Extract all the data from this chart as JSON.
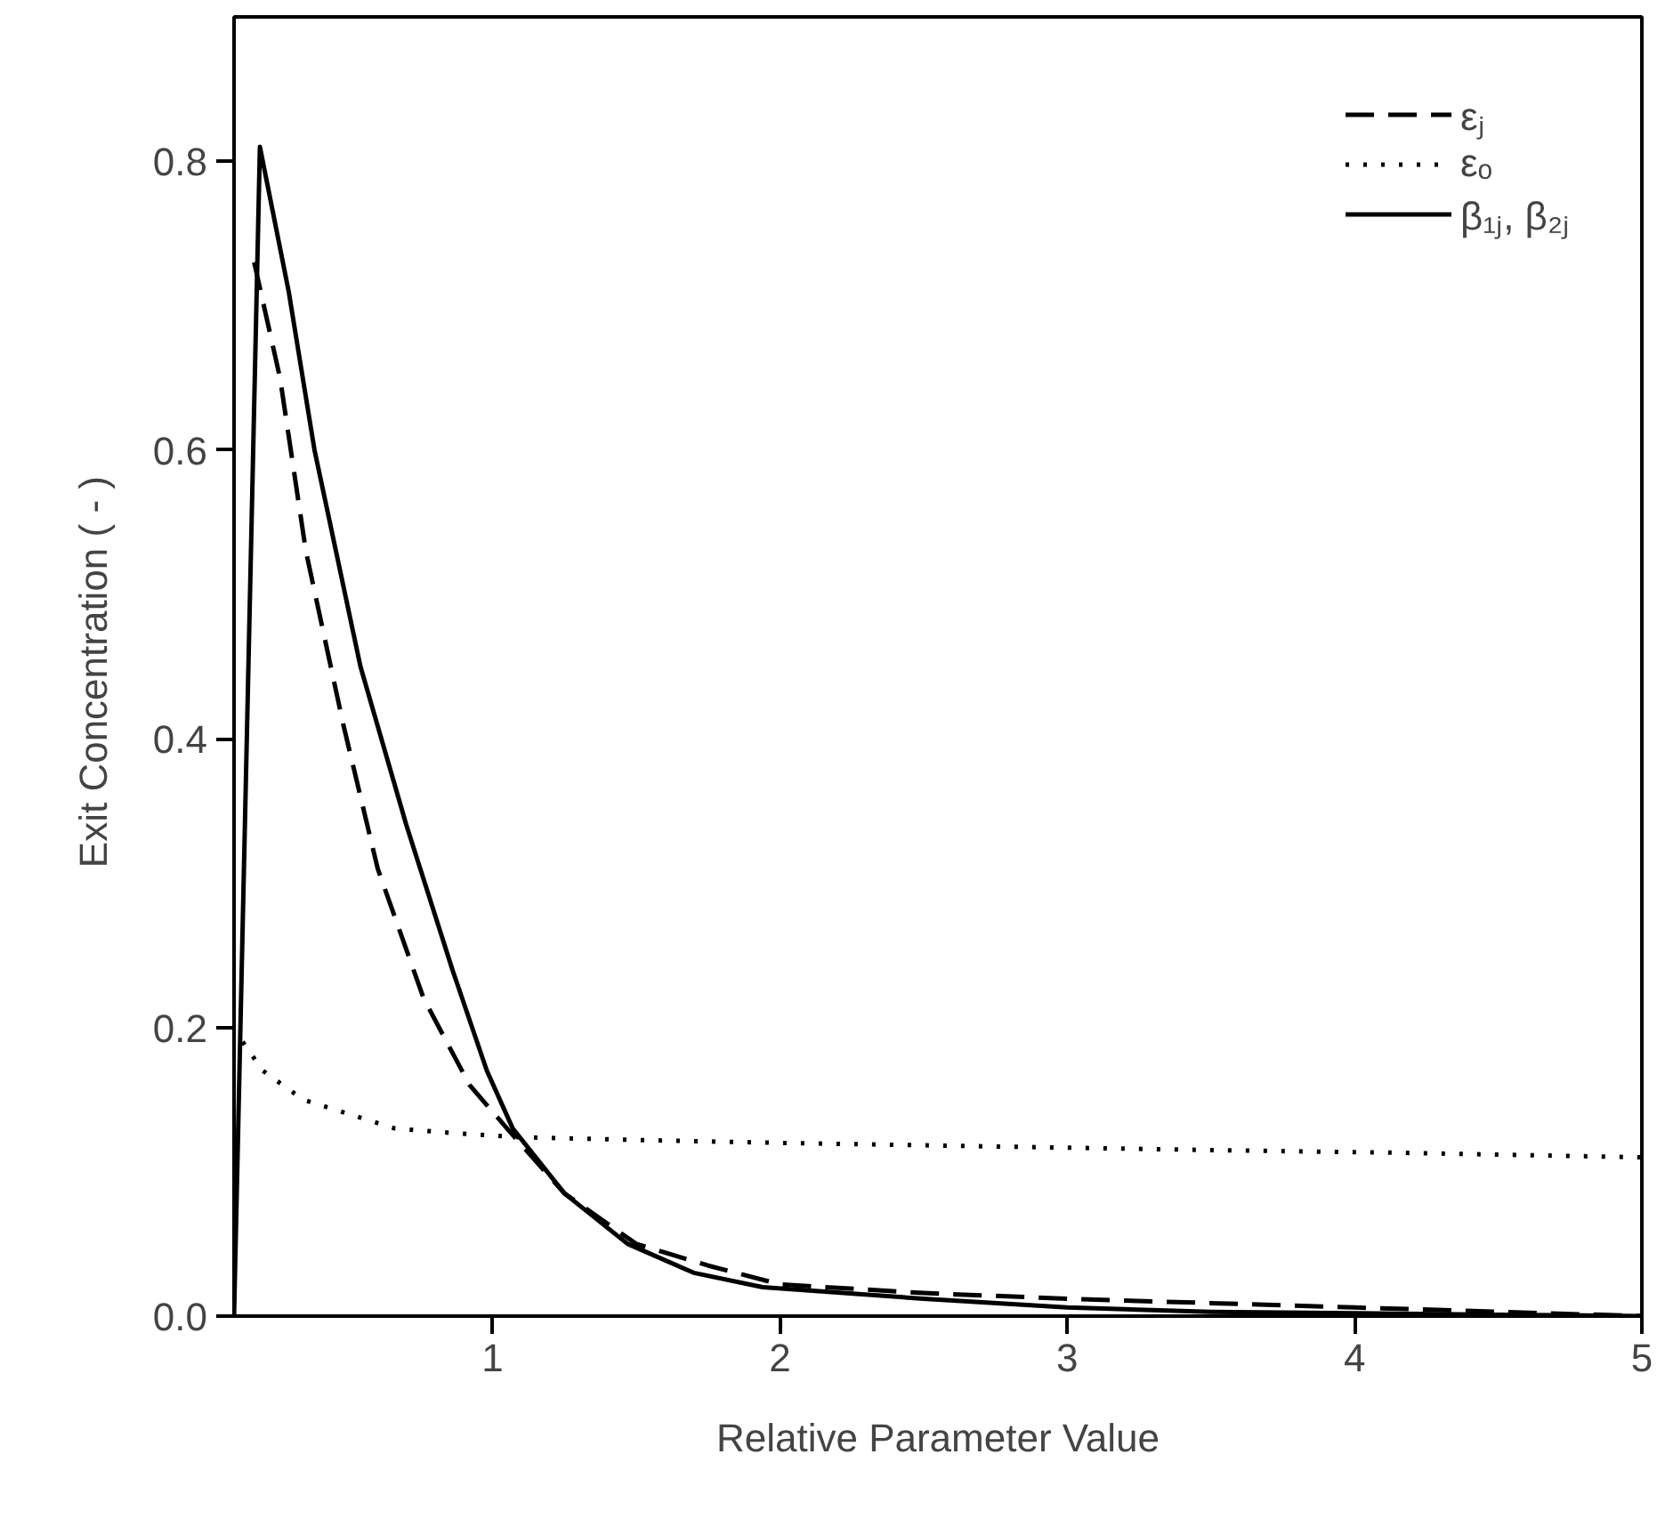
{
  "chart_data": {
    "type": "line",
    "xlabel": "Relative Parameter Value",
    "ylabel": "Exit  Concentration ( - )",
    "xlim": [
      0.1,
      5
    ],
    "ylim": [
      0,
      0.9
    ],
    "xticks": [
      1,
      2,
      3,
      4,
      5
    ],
    "yticks": [
      {
        "value": 0,
        "label": "0.0"
      },
      0.2,
      0.4,
      0.6,
      0.8
    ],
    "grid": false,
    "legend": "top right",
    "marker": "none",
    "series": [
      {
        "name": "εⱼ",
        "color": "#000000",
        "line_style": "dashed",
        "x": [
          0.17,
          0.26,
          0.35,
          0.48,
          0.6,
          0.76,
          0.92,
          1.05,
          1.25,
          1.5,
          1.75,
          2.0,
          2.5,
          3.0,
          3.5,
          4.0,
          4.5,
          5.0
        ],
        "values": [
          0.73,
          0.65,
          0.53,
          0.41,
          0.31,
          0.22,
          0.16,
          0.13,
          0.085,
          0.05,
          0.035,
          0.022,
          0.016,
          0.012,
          0.009,
          0.006,
          0.003,
          0.0
        ]
      },
      {
        "name": "εₒ",
        "color": "#000000",
        "line_style": "dotted",
        "x": [
          0.13,
          0.2,
          0.34,
          0.5,
          0.66,
          0.85,
          1.08,
          1.5,
          2.0,
          2.6,
          3.5,
          4.2,
          5.0
        ],
        "values": [
          0.19,
          0.17,
          0.15,
          0.14,
          0.13,
          0.127,
          0.124,
          0.122,
          0.12,
          0.118,
          0.115,
          0.113,
          0.11
        ]
      },
      {
        "name": "β₁ⱼ, β₂ⱼ",
        "color": "#000000",
        "line_style": "solid",
        "x": [
          0.1,
          0.19,
          0.29,
          0.38,
          0.54,
          0.7,
          0.86,
          0.98,
          1.07,
          1.25,
          1.47,
          1.7,
          1.94,
          2.5,
          3.0,
          3.5,
          4.0,
          4.5,
          5.0
        ],
        "values": [
          0,
          0.81,
          0.71,
          0.6,
          0.45,
          0.34,
          0.24,
          0.17,
          0.13,
          0.085,
          0.05,
          0.03,
          0.02,
          0.012,
          0.006,
          0.003,
          0.002,
          0.001,
          0
        ]
      }
    ]
  }
}
